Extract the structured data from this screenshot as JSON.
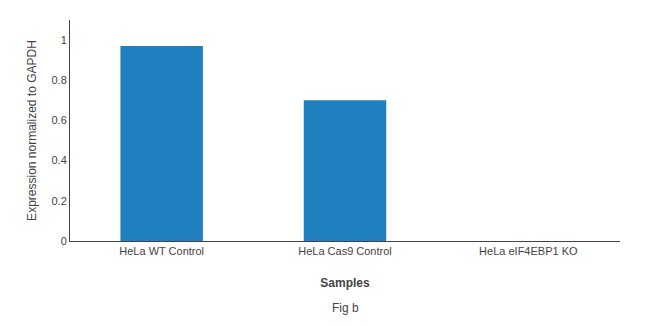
{
  "chart_data": {
    "type": "bar",
    "categories": [
      "HeLa WT Control",
      "HeLa Cas9 Control",
      "HeLa eIF4EBP1 KO"
    ],
    "values": [
      0.97,
      0.7,
      0.0
    ],
    "color": "#2180c0",
    "xlabel": "Samples",
    "ylabel": "Expression normalized to GAPDH",
    "ylim": [
      0,
      1.1
    ],
    "yticks": [
      0,
      0.2,
      0.4,
      0.6,
      0.8,
      1.0
    ],
    "grid": false,
    "annotations": [
      "Fig b"
    ]
  }
}
